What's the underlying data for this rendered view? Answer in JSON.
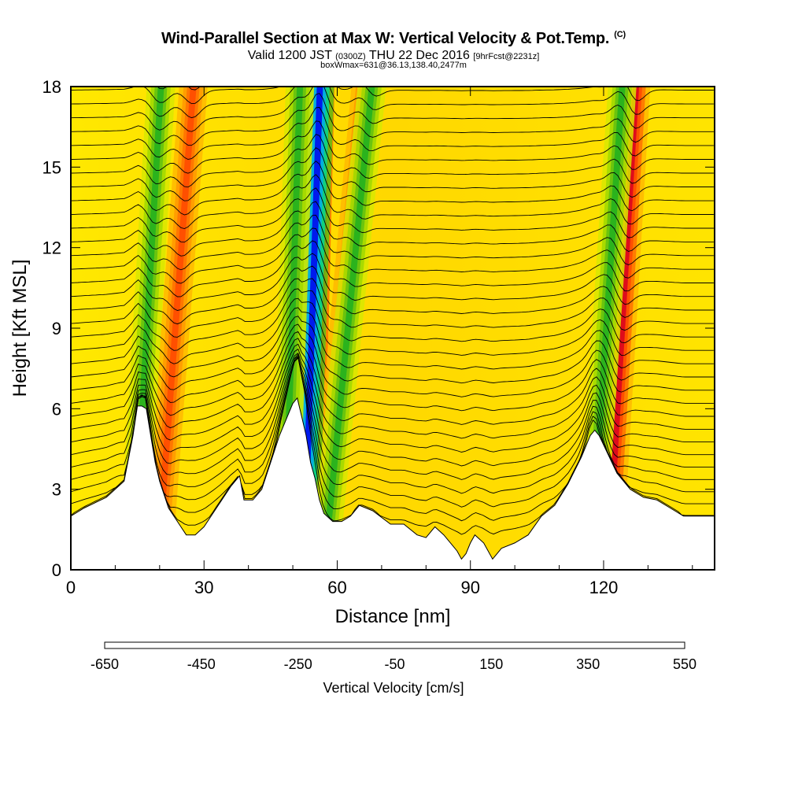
{
  "header": {
    "title": "Wind-Parallel Section at Max W: Vertical Velocity & Pot.Temp.",
    "copyright": "(C)",
    "valid_prefix": "Valid 1200 JST",
    "valid_utc": "(0300Z)",
    "valid_date": "THU 22 Dec 2016",
    "forecast": "[9hrFcst@2231z]",
    "box_info": "boxWmax=631@36.13,138.40,2477m"
  },
  "colorbar": {
    "label": "Vertical Velocity [cm/s]",
    "tick_labels": [
      "-650",
      "-450",
      "-250",
      "-50",
      "150",
      "350",
      "550"
    ],
    "colors": [
      "#0000f0",
      "#0040f0",
      "#0078f0",
      "#00a8f0",
      "#00d8f0",
      "#00f0d0",
      "#00d890",
      "#00c060",
      "#20b020",
      "#60c010",
      "#a0d800",
      "#d8e800",
      "#fff000",
      "#ffd800",
      "#ffb800",
      "#ff9800",
      "#ff7000",
      "#ff4800",
      "#f01800",
      "#d80020",
      "#b80040",
      "#980060",
      "#780080",
      "#580090"
    ]
  },
  "chart_data": {
    "type": "heatmap",
    "title": "Wind-Parallel Section at Max W: Vertical Velocity & Pot.Temp.",
    "xlabel": "Distance [nm]",
    "ylabel": "Height [Kft MSL]",
    "xlim": [
      0,
      145
    ],
    "ylim": [
      0,
      18
    ],
    "x_ticks": [
      0,
      30,
      60,
      90,
      120
    ],
    "y_ticks": [
      0,
      3,
      6,
      9,
      12,
      15,
      18
    ],
    "color_variable": "Vertical Velocity [cm/s]",
    "color_range": [
      -650,
      550
    ],
    "contour_variable": "Potential Temperature",
    "terrain_profile": {
      "x": [
        0,
        3,
        8,
        12,
        14,
        15,
        16,
        17,
        18,
        19,
        20,
        22,
        24,
        26,
        28,
        30,
        32,
        34,
        36,
        38,
        39,
        41,
        43,
        45,
        47,
        49,
        50,
        51,
        52,
        53,
        54,
        55,
        56,
        57,
        59,
        61,
        63,
        65,
        68,
        72,
        75,
        78,
        80,
        82,
        84,
        86,
        87,
        88,
        89,
        90,
        91,
        93,
        95,
        97,
        100,
        103,
        106,
        109,
        112,
        115,
        117,
        118,
        119,
        121,
        123,
        126,
        129,
        132,
        135,
        138,
        141,
        145
      ],
      "y": [
        2.0,
        2.3,
        2.7,
        3.3,
        5.0,
        6.1,
        6.1,
        6.0,
        5.0,
        4.0,
        3.3,
        2.3,
        1.8,
        1.3,
        1.3,
        1.6,
        2.1,
        2.6,
        3.1,
        3.5,
        2.6,
        2.6,
        3.0,
        4.0,
        5.0,
        5.8,
        6.2,
        6.4,
        5.7,
        5.0,
        4.0,
        3.4,
        2.6,
        2.1,
        1.8,
        1.8,
        2.0,
        2.4,
        2.2,
        1.7,
        1.7,
        1.3,
        1.2,
        1.6,
        1.3,
        0.9,
        0.7,
        0.4,
        0.6,
        1.0,
        1.3,
        1.0,
        0.4,
        0.8,
        1.0,
        1.3,
        2.0,
        2.4,
        3.2,
        4.2,
        5.0,
        5.2,
        5.0,
        4.3,
        3.6,
        3.0,
        2.7,
        2.6,
        2.3,
        2.0,
        2.0,
        2.0
      ]
    },
    "updraft_bands": [
      {
        "name": "max-updraft",
        "x_base": 53.5,
        "lean_per_kft": 0.15,
        "w_max": 631
      },
      {
        "x_base": 19.5,
        "lean_per_kft": 0.45,
        "w_max": 200
      },
      {
        "x_base": 56.5,
        "lean_per_kft": 0.55,
        "w_max": 250
      },
      {
        "x_base": 121,
        "lean_per_kft": 0.35,
        "w_max": 300
      }
    ],
    "downdraft_bands": [
      {
        "x_base": 52.5,
        "lean_per_kft": 0.2,
        "w_min": -650
      },
      {
        "x_base": 14,
        "lean_per_kft": 0.35,
        "w_min": -250
      },
      {
        "x_base": 48,
        "lean_per_kft": 0.2,
        "w_min": -250
      },
      {
        "x_base": 57,
        "lean_per_kft": 0.6,
        "w_min": -250
      },
      {
        "x_base": 117,
        "lean_per_kft": 0.4,
        "w_min": -250
      }
    ]
  }
}
